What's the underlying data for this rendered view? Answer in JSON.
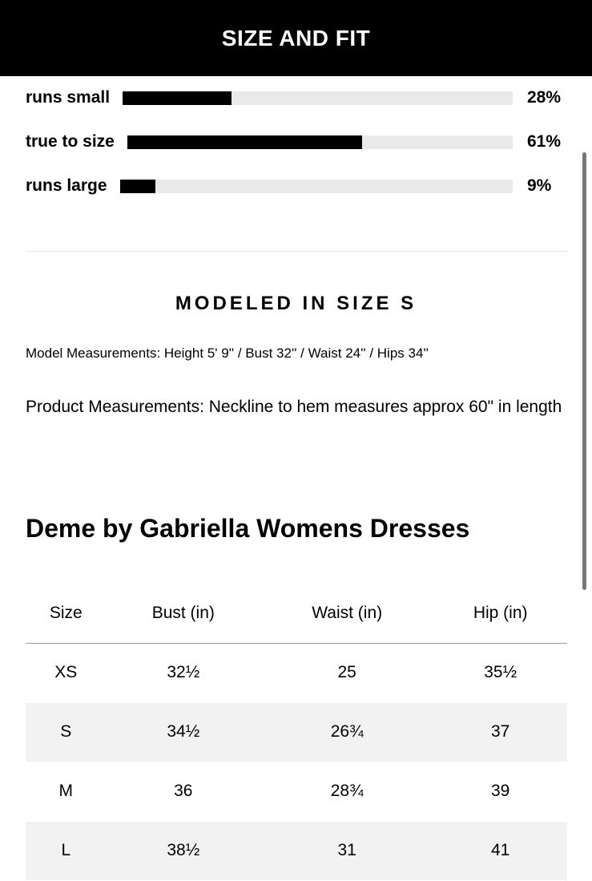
{
  "header": {
    "title": "SIZE AND FIT"
  },
  "fit": [
    {
      "label": "runs small",
      "percent_text": "28%",
      "value": 28
    },
    {
      "label": "true to size",
      "percent_text": "61%",
      "value": 61
    },
    {
      "label": "runs large",
      "percent_text": "9%",
      "value": 9
    }
  ],
  "modeled": {
    "heading": "MODELED IN SIZE S",
    "model_measurements": "Model Measurements: Height 5' 9'' / Bust 32'' / Waist 24'' / Hips 34''",
    "product_measurements": "Product Measurements: Neckline to hem measures approx 60\" in length"
  },
  "size_chart": {
    "title": "Deme by Gabriella Womens Dresses",
    "headers": [
      "Size",
      "Bust (in)",
      "Waist (in)",
      "Hip (in)"
    ],
    "rows": [
      [
        "XS",
        "32½",
        "25",
        "35½"
      ],
      [
        "S",
        "34½",
        "26¾",
        "37"
      ],
      [
        "M",
        "36",
        "28¾",
        "39"
      ],
      [
        "L",
        "38½",
        "31",
        "41"
      ]
    ]
  },
  "colors": {
    "bar_fill": "#000000",
    "bar_track": "#e9e9e9",
    "header_bg": "#000000"
  }
}
